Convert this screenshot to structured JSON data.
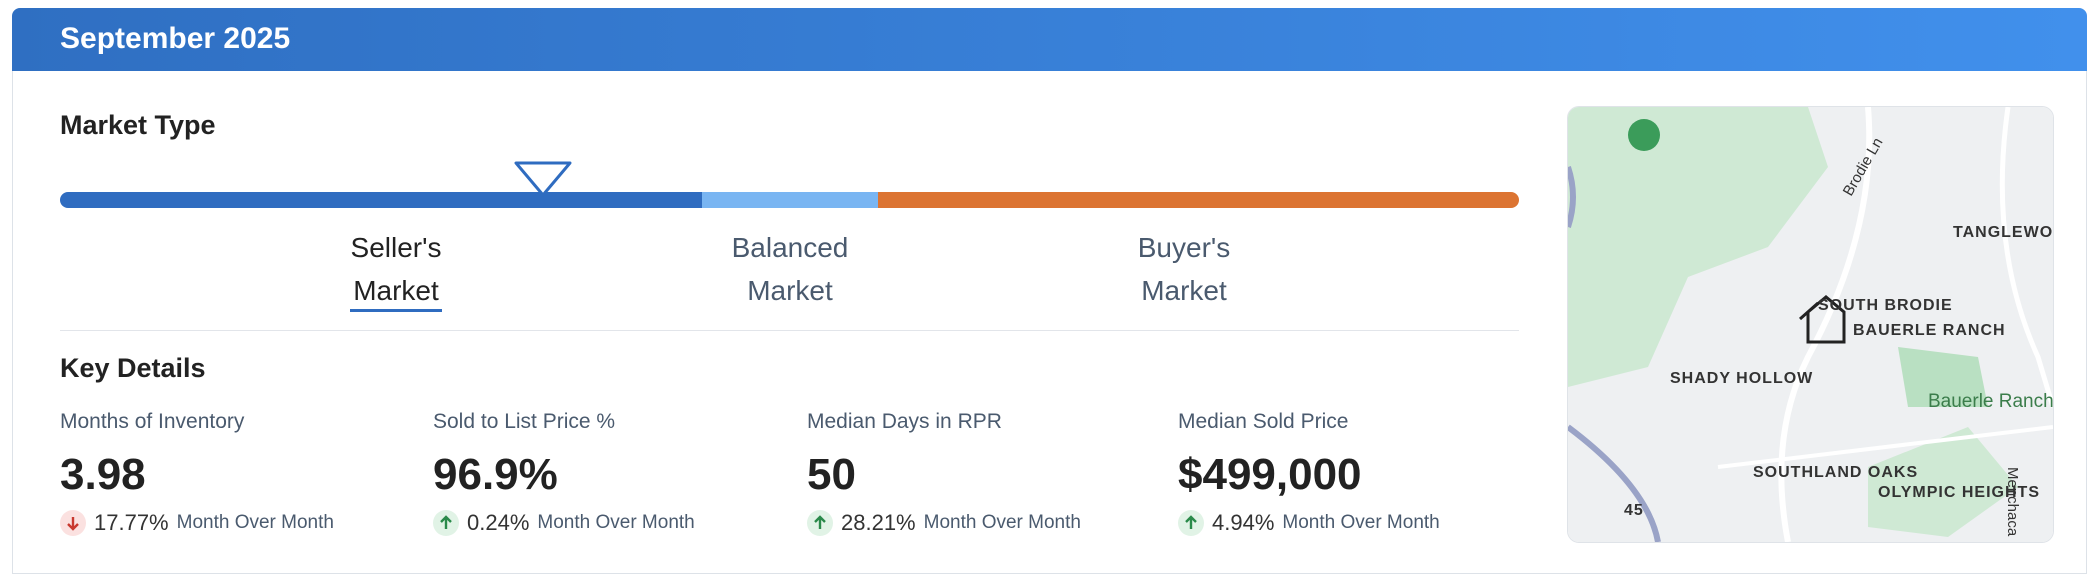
{
  "header": {
    "title": "September 2025"
  },
  "market_type": {
    "title": "Market Type",
    "labels": [
      "Seller's Market",
      "Balanced Market",
      "Buyer's Market"
    ],
    "active": 0
  },
  "key_details": {
    "title": "Key Details",
    "metrics": [
      {
        "label": "Months of Inventory",
        "value": "3.98",
        "change": "17.77%",
        "change_label": "Month Over Month",
        "direction": "down"
      },
      {
        "label": "Sold to List Price %",
        "value": "96.9%",
        "change": "0.24%",
        "change_label": "Month Over Month",
        "direction": "up"
      },
      {
        "label": "Median Days in RPR",
        "value": "50",
        "change": "28.21%",
        "change_label": "Month Over Month",
        "direction": "up"
      },
      {
        "label": "Median Sold Price",
        "value": "$499,000",
        "change": "4.94%",
        "change_label": "Month Over Month",
        "direction": "up"
      }
    ]
  },
  "map": {
    "labels": [
      "TANGLEWOOD FOREST",
      "SOUTH BRODIE",
      "BAUERLE RANCH",
      "SHADY HOLLOW",
      "Bauerle Ranch Park",
      "SOUTHLAND OAKS",
      "OLYMPIC HEIGHTS",
      "Brodie Ln",
      "Menchaca",
      "45"
    ]
  }
}
